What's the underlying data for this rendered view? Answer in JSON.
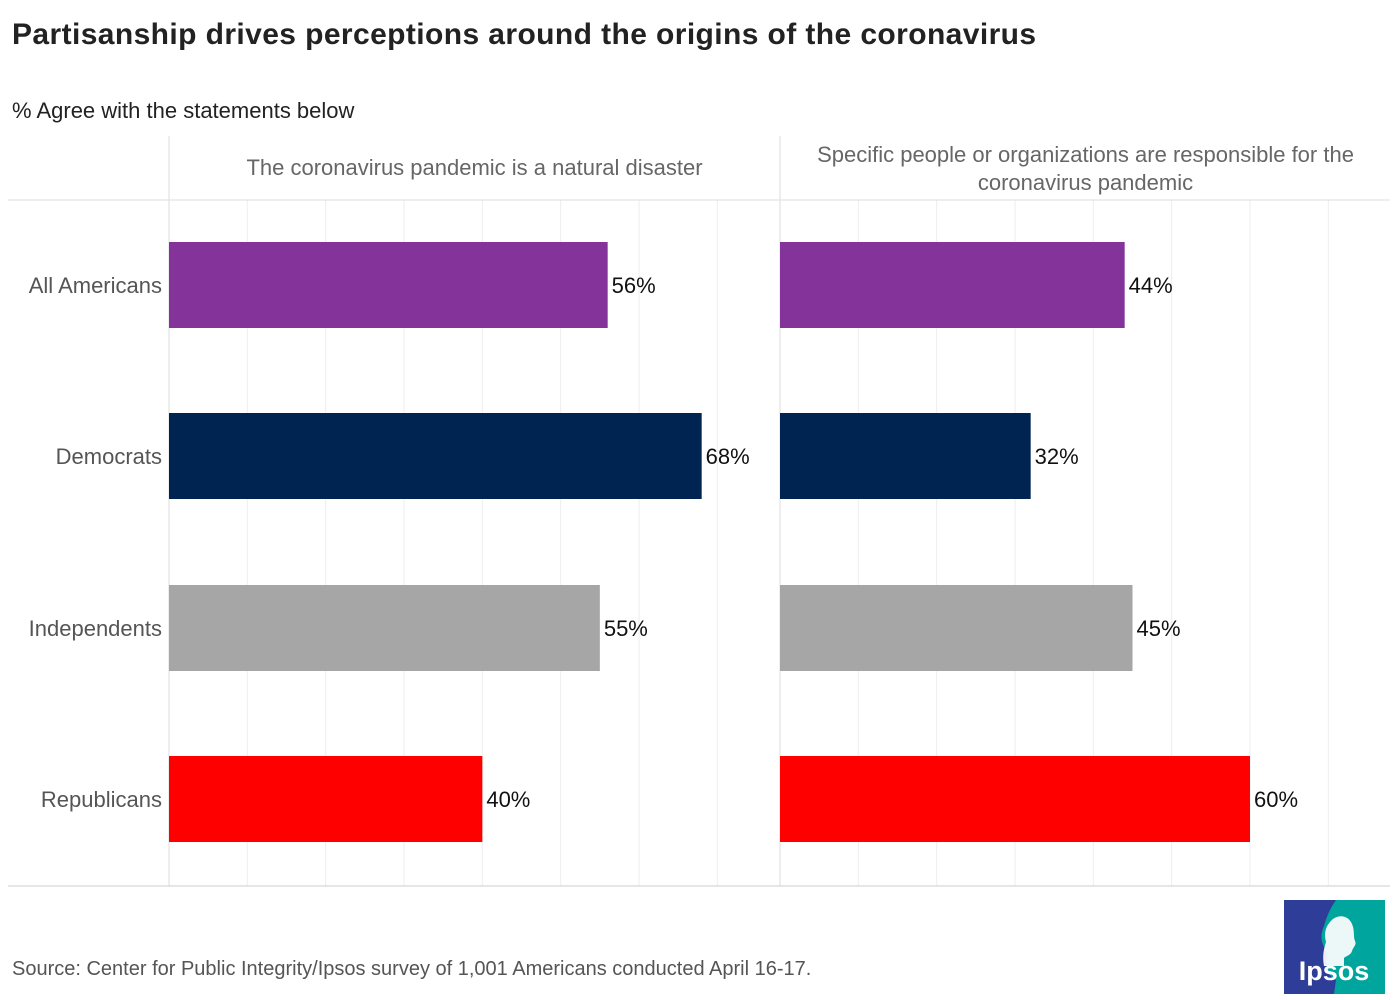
{
  "title": "Partisanship drives perceptions around the origins of the coronavirus",
  "subtitle": "% Agree with the statements below",
  "source": "Source: Center for Public Integrity/Ipsos survey of 1,001 Americans conducted April 16-17.",
  "logo_text": "Ipsos",
  "colors": {
    "All Americans": "#833399",
    "Democrats": "#002452",
    "Independents": "#a6a6a6",
    "Republicans": "#ff0000",
    "logo_blue": "#2e3d98",
    "logo_teal": "#00a59d"
  },
  "chart_data": {
    "type": "bar",
    "orientation": "horizontal",
    "title": "Partisanship drives perceptions around the origins of the coronavirus",
    "subtitle": "% Agree with the statements below",
    "categories": [
      "All Americans",
      "Democrats",
      "Independents",
      "Republicans"
    ],
    "panels": [
      {
        "title_lines": [
          "The coronavirus pandemic is a natural disaster"
        ],
        "values": [
          56,
          68,
          55,
          40
        ],
        "labels": [
          "56%",
          "68%",
          "55%",
          "40%"
        ]
      },
      {
        "title_lines": [
          "Specific people or organizations are responsible for the",
          "coronavirus pandemic"
        ],
        "values": [
          44,
          32,
          45,
          60
        ],
        "labels": [
          "44%",
          "32%",
          "45%",
          "60%"
        ]
      }
    ],
    "xlim": [
      0,
      78
    ],
    "grid_step": 10,
    "grid": true,
    "legend": "none"
  }
}
